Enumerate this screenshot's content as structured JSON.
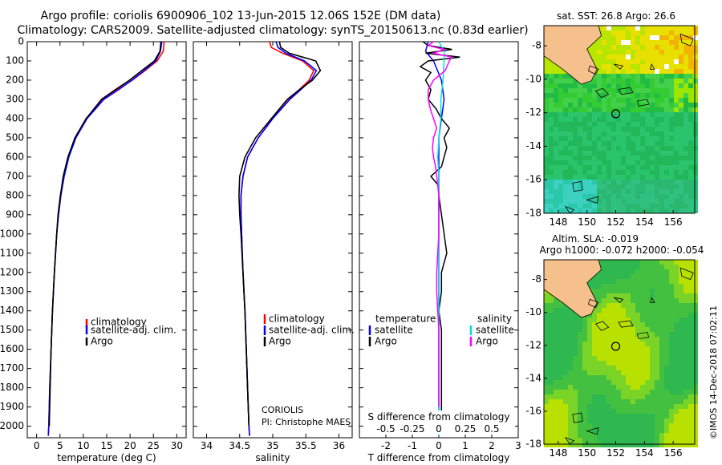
{
  "title_line1": "Argo profile: coriolis 6900906_102 13-Jun-2015 12.06S 152E (DM data)",
  "title_line2": "Climatology: CARS2009. Satellite-adjusted climatology: synTS_20150613.nc (0.83d earlier)",
  "colors": {
    "climatology": "#ff0000",
    "satellite": "#0000ff",
    "argo": "#000000",
    "sal_sat": "#00dddd",
    "sal_argo": "#ff00ff",
    "land": "#f5c08c"
  },
  "chart_data": [
    {
      "type": "line",
      "id": "temperature",
      "xlabel": "temperature (deg C)",
      "xlim": [
        -2,
        32
      ],
      "xticks": [
        0,
        5,
        10,
        15,
        20,
        25,
        30
      ],
      "ylim": [
        2060,
        0
      ],
      "yticks": [
        0,
        100,
        200,
        300,
        400,
        500,
        600,
        700,
        800,
        900,
        1000,
        1100,
        1200,
        1300,
        1400,
        1500,
        1600,
        1700,
        1800,
        1900,
        2000
      ],
      "legend": [
        "climatology",
        "satellite-adj. clim.",
        "Argo"
      ],
      "series": [
        {
          "name": "climatology",
          "depth": [
            0,
            50,
            100,
            150,
            200,
            250,
            300,
            400,
            500,
            600,
            700,
            800,
            900,
            1000,
            1200,
            1400,
            1600,
            1800,
            2000,
            2050
          ],
          "values": [
            27.3,
            27.1,
            25.8,
            23.2,
            20.5,
            17.2,
            14.2,
            10.6,
            8.3,
            6.8,
            5.8,
            5.1,
            4.6,
            4.3,
            3.8,
            3.4,
            3.1,
            2.8,
            2.6,
            2.5
          ]
        },
        {
          "name": "satellite-adj. clim.",
          "depth": [
            0,
            50,
            100,
            150,
            200,
            250,
            300,
            400,
            500,
            600,
            700,
            800,
            900,
            1000,
            1200,
            1400,
            1600,
            1800,
            2000,
            2050
          ],
          "values": [
            26.8,
            26.5,
            25.5,
            23.0,
            20.4,
            17.5,
            14.4,
            10.8,
            8.4,
            6.9,
            5.9,
            5.2,
            4.7,
            4.3,
            3.8,
            3.4,
            3.1,
            2.8,
            2.6,
            2.5
          ]
        },
        {
          "name": "Argo",
          "depth": [
            0,
            50,
            100,
            150,
            200,
            250,
            300,
            400,
            500,
            600,
            700,
            800,
            900,
            1000,
            1200,
            1400,
            1600,
            1800,
            2000
          ],
          "values": [
            26.6,
            26.4,
            25.2,
            22.5,
            19.9,
            16.8,
            13.9,
            10.6,
            8.2,
            6.7,
            5.7,
            5.1,
            4.6,
            4.3,
            3.8,
            3.4,
            3.1,
            2.9,
            2.7
          ]
        }
      ]
    },
    {
      "type": "line",
      "id": "salinity",
      "xlabel": "salinity",
      "xlim": [
        33.8,
        36.2
      ],
      "xticks": [
        34,
        34.5,
        35,
        35.5,
        36
      ],
      "ylim": [
        2060,
        0
      ],
      "legend": [
        "climatology",
        "satellite-adj. clim.",
        "Argo"
      ],
      "annotation_line1": "CORIOLIS",
      "annotation_line2": "PI: Christophe MAES",
      "series": [
        {
          "name": "climatology",
          "depth": [
            0,
            30,
            60,
            100,
            150,
            200,
            250,
            300,
            400,
            500,
            600,
            700,
            800,
            900,
            1000,
            1200,
            1400,
            1600,
            1800,
            2000,
            2050
          ],
          "values": [
            34.95,
            34.98,
            35.15,
            35.45,
            35.62,
            35.55,
            35.4,
            35.25,
            35.0,
            34.78,
            34.62,
            34.55,
            34.52,
            34.52,
            34.53,
            34.55,
            34.58,
            34.6,
            34.62,
            34.64,
            34.65
          ]
        },
        {
          "name": "satellite-adj. clim.",
          "depth": [
            0,
            30,
            60,
            100,
            150,
            200,
            250,
            300,
            400,
            500,
            600,
            700,
            800,
            900,
            1000,
            1200,
            1400,
            1600,
            1800,
            2000,
            2050
          ],
          "values": [
            35.05,
            35.08,
            35.2,
            35.48,
            35.66,
            35.58,
            35.42,
            35.26,
            35.0,
            34.78,
            34.62,
            34.55,
            34.52,
            34.52,
            34.53,
            34.55,
            34.58,
            34.6,
            34.62,
            34.64,
            34.65
          ]
        },
        {
          "name": "Argo",
          "depth": [
            0,
            30,
            60,
            100,
            150,
            200,
            250,
            300,
            400,
            500,
            600,
            700,
            800,
            900,
            1000,
            1200,
            1400,
            1600,
            1800,
            2000
          ],
          "values": [
            35.1,
            35.12,
            35.25,
            35.65,
            35.72,
            35.6,
            35.4,
            35.22,
            34.98,
            34.74,
            34.58,
            34.5,
            34.49,
            34.5,
            34.52,
            34.55,
            34.58,
            34.6,
            34.62,
            34.64
          ]
        }
      ]
    },
    {
      "type": "line",
      "id": "difference",
      "xlabel": "T difference from climatology",
      "xlabel_top": "S difference from climatology",
      "xlim": [
        -3,
        3
      ],
      "xticks": [
        -2,
        -1,
        0,
        1,
        2,
        3
      ],
      "xticks_top": [
        "-0.5",
        "-0.25",
        "0",
        "0.25",
        "0.5"
      ],
      "ylim": [
        2060,
        0
      ],
      "legend_left": {
        "title": "temperature",
        "items": [
          "satellite",
          "Argo"
        ]
      },
      "legend_right": {
        "title": "salinity",
        "items": [
          "satellite",
          "Argo"
        ]
      },
      "series": [
        {
          "name": "T satellite",
          "depth": [
            0,
            50,
            100,
            200,
            300,
            400,
            500,
            600,
            700,
            800,
            1000,
            1200,
            1400,
            1600,
            1800,
            2000,
            2050
          ],
          "values": [
            -0.4,
            -0.5,
            -0.2,
            0.1,
            0.2,
            0.1,
            0.0,
            0.0,
            0.0,
            0.0,
            0.0,
            0.0,
            0.0,
            0.0,
            0.0,
            0.0,
            0.0
          ]
        },
        {
          "name": "T Argo",
          "depth": [
            0,
            20,
            40,
            60,
            80,
            100,
            130,
            160,
            200,
            250,
            300,
            350,
            400,
            450,
            500,
            550,
            600,
            650,
            700,
            750,
            800,
            900,
            1000,
            1100,
            1200,
            1300,
            1400,
            1500,
            1600,
            1700,
            1800,
            1900,
            2000
          ],
          "values": [
            -0.6,
            -0.4,
            0.5,
            -0.5,
            0.8,
            -0.4,
            -0.7,
            -0.3,
            -0.5,
            -0.3,
            -0.4,
            -0.1,
            0.1,
            0.4,
            0.2,
            0.3,
            0.2,
            0.1,
            -0.3,
            0.0,
            0.0,
            0.1,
            0.2,
            0.3,
            0.1,
            0.1,
            0.0,
            0.1,
            0.1,
            0.1,
            0.1,
            0.1,
            0.1
          ]
        },
        {
          "name": "S satellite",
          "depth": [
            0,
            50,
            100,
            200,
            300,
            400,
            500,
            600,
            700,
            800,
            1000,
            1200,
            1400,
            1600,
            1800,
            2000,
            2050
          ],
          "values": [
            0.0,
            0.05,
            0.05,
            0.04,
            0.02,
            0.02,
            0.0,
            -0.01,
            0.0,
            0.0,
            0.0,
            0.0,
            0.0,
            0.0,
            0.0,
            0.0,
            0.0
          ]
        },
        {
          "name": "S Argo",
          "depth": [
            0,
            20,
            40,
            60,
            80,
            100,
            150,
            200,
            250,
            300,
            350,
            400,
            450,
            500,
            550,
            600,
            650,
            700,
            800,
            900,
            1000,
            1100,
            1200,
            1300,
            1400,
            1500,
            1600,
            1700,
            1800,
            1900
          ],
          "values": [
            -0.05,
            -0.1,
            0.05,
            -0.05,
            0.12,
            0.1,
            0.06,
            -0.05,
            -0.1,
            -0.1,
            -0.08,
            -0.05,
            -0.02,
            -0.05,
            -0.06,
            -0.05,
            -0.03,
            -0.02,
            0.0,
            0.0,
            0.0,
            -0.01,
            -0.02,
            -0.02,
            -0.01,
            0.0,
            0.0,
            0.0,
            0.0,
            0.0
          ]
        }
      ]
    },
    {
      "type": "heatmap",
      "id": "sst_map",
      "title": "sat. SST: 26.8 Argo: 26.6",
      "xticks": [
        148,
        150,
        152,
        154,
        156
      ],
      "yticks": [
        -8,
        -10,
        -12,
        -14,
        -16,
        -18
      ],
      "xlim": [
        147,
        157.5
      ],
      "ylim": [
        -18,
        -6.8
      ],
      "argo_position": [
        152,
        -12.06
      ]
    },
    {
      "type": "heatmap",
      "id": "sla_map",
      "title_line1": "Altim. SLA: -0.019",
      "title_line2": "Argo h1000: -0.072 h2000: -0.054",
      "xticks": [
        148,
        150,
        152,
        154,
        156
      ],
      "yticks": [
        -8,
        -10,
        -12,
        -14,
        -16,
        -18
      ],
      "xlim": [
        147,
        157.5
      ],
      "ylim": [
        -18,
        -6.8
      ],
      "argo_position": [
        152,
        -12.06
      ]
    }
  ],
  "watermark": "©IMOS 14-Dec-2018 07:02:11"
}
